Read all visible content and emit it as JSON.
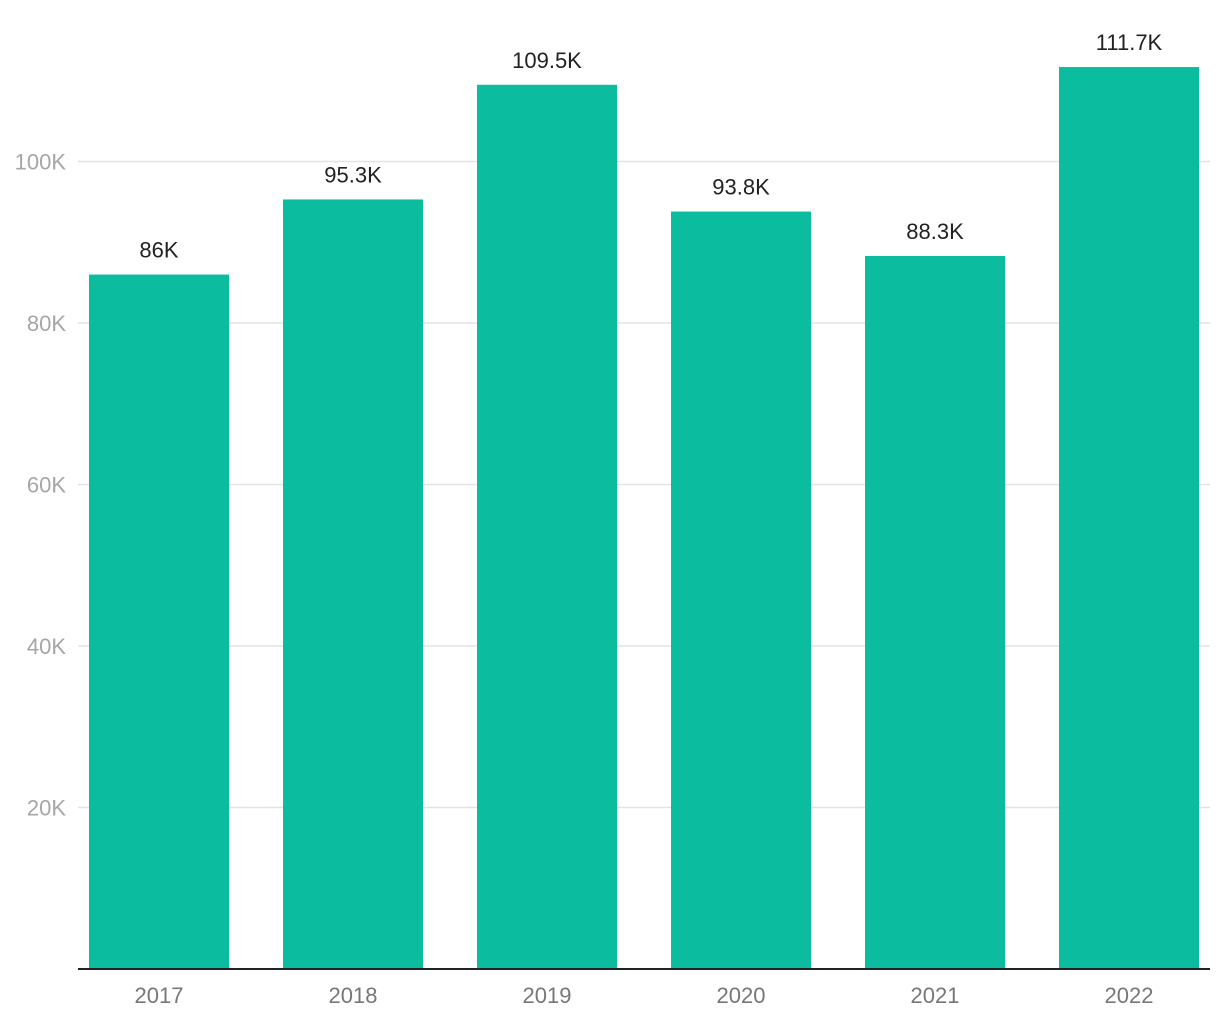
{
  "chart_data": {
    "type": "bar",
    "categories": [
      "2017",
      "2018",
      "2019",
      "2020",
      "2021",
      "2022"
    ],
    "values": [
      86000,
      95300,
      109500,
      93800,
      88300,
      111700
    ],
    "data_labels": [
      "86K",
      "95.3K",
      "109.5K",
      "93.8K",
      "88.3K",
      "111.7K"
    ],
    "y_ticks": [
      20000,
      40000,
      60000,
      80000,
      100000
    ],
    "y_tick_labels": [
      "20K",
      "40K",
      "60K",
      "80K",
      "100K"
    ],
    "ylim": [
      0,
      120000
    ],
    "grid": true,
    "legend": "none",
    "title": "",
    "xlabel": "",
    "ylabel": "",
    "colors": {
      "bar": "#0bbc9f",
      "grid": "#e3e3e3",
      "axis": "#222222"
    }
  }
}
